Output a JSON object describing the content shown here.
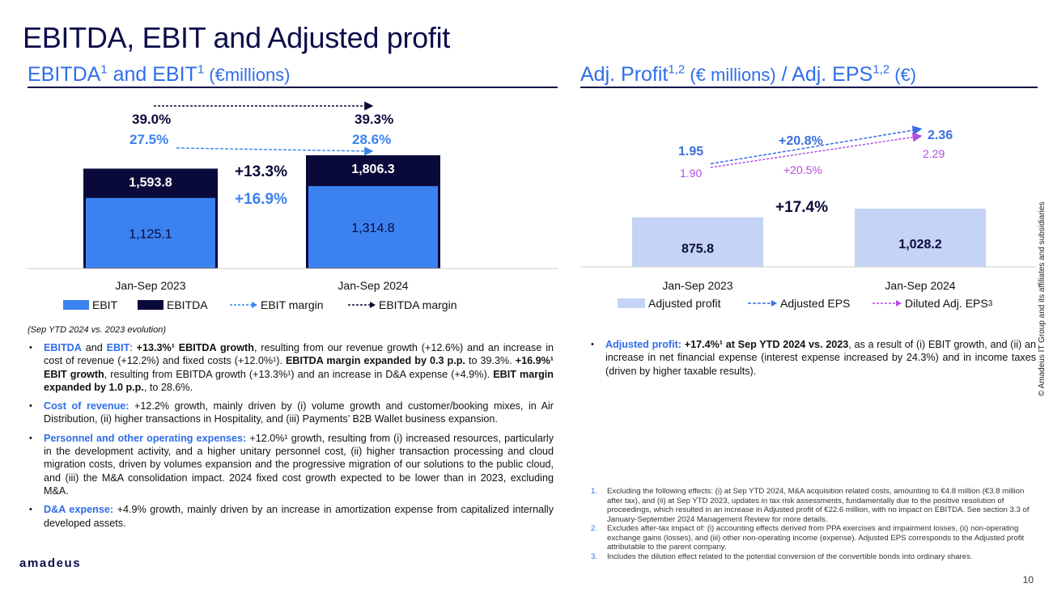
{
  "page": {
    "title": "EBITDA, EBIT and Adjusted profit",
    "logo": "amadeus",
    "page_number": "10",
    "copyright": "© Amadeus IT Group and its affiliates and subsidiaries"
  },
  "left": {
    "title_ebitda": "EBITDA",
    "title_sup1": "1",
    "title_and": " and EBIT",
    "title_sup2": "1",
    "title_unit": " (€millions)",
    "note": "(Sep YTD 2024 vs. 2023 evolution)"
  },
  "right": {
    "title_a": "Adj. Profit",
    "title_sup_a": "1,2",
    "title_unit_a": " (€ millions)",
    "title_b": " / Adj. EPS",
    "title_sup_b": "1,2",
    "title_unit_b": " (€)"
  },
  "chart_data": [
    {
      "type": "bar",
      "categories": [
        "Jan-Sep 2023",
        "Jan-Sep 2024"
      ],
      "series": [
        {
          "name": "EBIT",
          "values": [
            1125.1,
            1314.8
          ],
          "labels": [
            "1,125.1",
            "1,314.8"
          ],
          "color": "#3b82f0"
        },
        {
          "name": "EBITDA",
          "values": [
            1593.8,
            1806.3
          ],
          "labels": [
            "1,593.8",
            "1,806.3"
          ],
          "color": "#0a0a3a"
        },
        {
          "name": "EBIT margin",
          "values": [
            27.5,
            28.6
          ],
          "labels": [
            "27.5%",
            "28.6%"
          ],
          "color": "#3b82f0"
        },
        {
          "name": "EBITDA margin",
          "values": [
            39.0,
            39.3
          ],
          "labels": [
            "39.0%",
            "39.3%"
          ],
          "color": "#0a0a3a"
        }
      ],
      "annotations": [
        {
          "text": "+13.3%",
          "color": "#0a0a3a"
        },
        {
          "text": "+16.9%",
          "color": "#3b82f0"
        }
      ],
      "legend_position": "bottom"
    },
    {
      "type": "bar",
      "categories": [
        "Jan-Sep 2023",
        "Jan-Sep 2024"
      ],
      "series": [
        {
          "name": "Adjusted profit",
          "values": [
            875.8,
            1028.2
          ],
          "labels": [
            "875.8",
            "1,028.2"
          ],
          "color": "#c5d3f6"
        },
        {
          "name": "Adjusted EPS",
          "values": [
            1.95,
            2.36
          ],
          "labels": [
            "1.95",
            "2.36"
          ],
          "color": "#3b6fe0"
        },
        {
          "name": "Diluted Adj. EPS",
          "name_sup": "3",
          "values": [
            1.9,
            2.29
          ],
          "labels": [
            "1.90",
            "2.29"
          ],
          "color": "#b04fe0"
        }
      ],
      "annotations": [
        {
          "text": "+17.4%",
          "color": "#0a0a3a"
        },
        {
          "text": "+20.8%",
          "color": "#3b6fe0"
        },
        {
          "text": "+20.5%",
          "color": "#b04fe0"
        }
      ],
      "legend_position": "bottom"
    }
  ],
  "bullets_left": [
    {
      "parts": [
        {
          "t": "EBITDA",
          "s": "bl"
        },
        {
          "t": " and ",
          "s": ""
        },
        {
          "t": "EBIT",
          "s": "bl"
        },
        {
          "t": ": ",
          "s": ""
        },
        {
          "t": "+13.3%¹ EBITDA growth",
          "s": "b"
        },
        {
          "t": ", resulting from our revenue growth (+12.6%) and an increase in cost of revenue (+12.2%) and fixed costs (+12.0%¹). ",
          "s": ""
        },
        {
          "t": "EBITDA margin expanded by 0.3 p.p.",
          "s": "b"
        },
        {
          "t": " to 39.3%. ",
          "s": ""
        },
        {
          "t": "+16.9%¹ EBIT growth",
          "s": "b"
        },
        {
          "t": ", resulting from EBITDA growth (+13.3%¹) and an increase in D&A expense (+4.9%). ",
          "s": ""
        },
        {
          "t": "EBIT margin expanded by 1.0 p.p.",
          "s": "b"
        },
        {
          "t": ", to 28.6%.",
          "s": ""
        }
      ]
    },
    {
      "parts": [
        {
          "t": "Cost of revenue:",
          "s": "bl"
        },
        {
          "t": " +12.2% growth, mainly driven by (i) volume growth and customer/booking mixes, in Air Distribution, (ii) higher transactions in Hospitality, and (iii) Payments’ B2B Wallet business expansion.",
          "s": ""
        }
      ]
    },
    {
      "parts": [
        {
          "t": "Personnel and other operating expenses:",
          "s": "bl"
        },
        {
          "t": " +12.0%¹ growth, resulting from (i) increased resources, particularly in the development activity, and a higher unitary personnel cost, (ii) higher transaction processing and cloud migration costs, driven by volumes expansion and the progressive migration of our solutions to the public cloud, and (iii) the M&A consolidation impact. 2024 fixed cost growth expected to be lower than in 2023, excluding M&A.",
          "s": ""
        }
      ]
    },
    {
      "parts": [
        {
          "t": "D&A expense:",
          "s": "bl"
        },
        {
          "t": " +4.9% growth, mainly driven by an increase in amortization expense from capitalized internally developed assets.",
          "s": ""
        }
      ]
    }
  ],
  "bullets_right": [
    {
      "parts": [
        {
          "t": "Adjusted profit:",
          "s": "bl"
        },
        {
          "t": " ",
          "s": ""
        },
        {
          "t": "+17.4%¹ at Sep YTD 2024 vs. 2023",
          "s": "b"
        },
        {
          "t": ", as a result of (i) EBIT growth, and (ii) an increase in net financial expense (interest expense increased by 24.3%) and in income taxes (driven by higher taxable results).",
          "s": ""
        }
      ]
    }
  ],
  "footnotes": [
    {
      "n": "1.",
      "text": "Excluding the following effects: (i) at Sep YTD 2024, M&A acquisition related costs, amounting to €4.8 million (€3.8 million after tax), and (ii) at Sep YTD 2023, updates in tax risk assessments, fundamentally due to the positive resolution of proceedings, which resulted in an increase in Adjusted profit of €22.6 million, with no impact on EBITDA. See section 3.3 of January-September 2024 Management Review for more details."
    },
    {
      "n": "2.",
      "text": "Excludes after-tax impact of: (i) accounting effects derived from PPA exercises and impairment losses, (ii) non-operating exchange gains (losses), and (iii) other non-operating income (expense). Adjusted EPS corresponds to the Adjusted profit attributable to the parent company."
    },
    {
      "n": "3.",
      "text": "Includes the dilution effect related to the potential conversion of the convertible bonds into ordinary shares."
    }
  ]
}
